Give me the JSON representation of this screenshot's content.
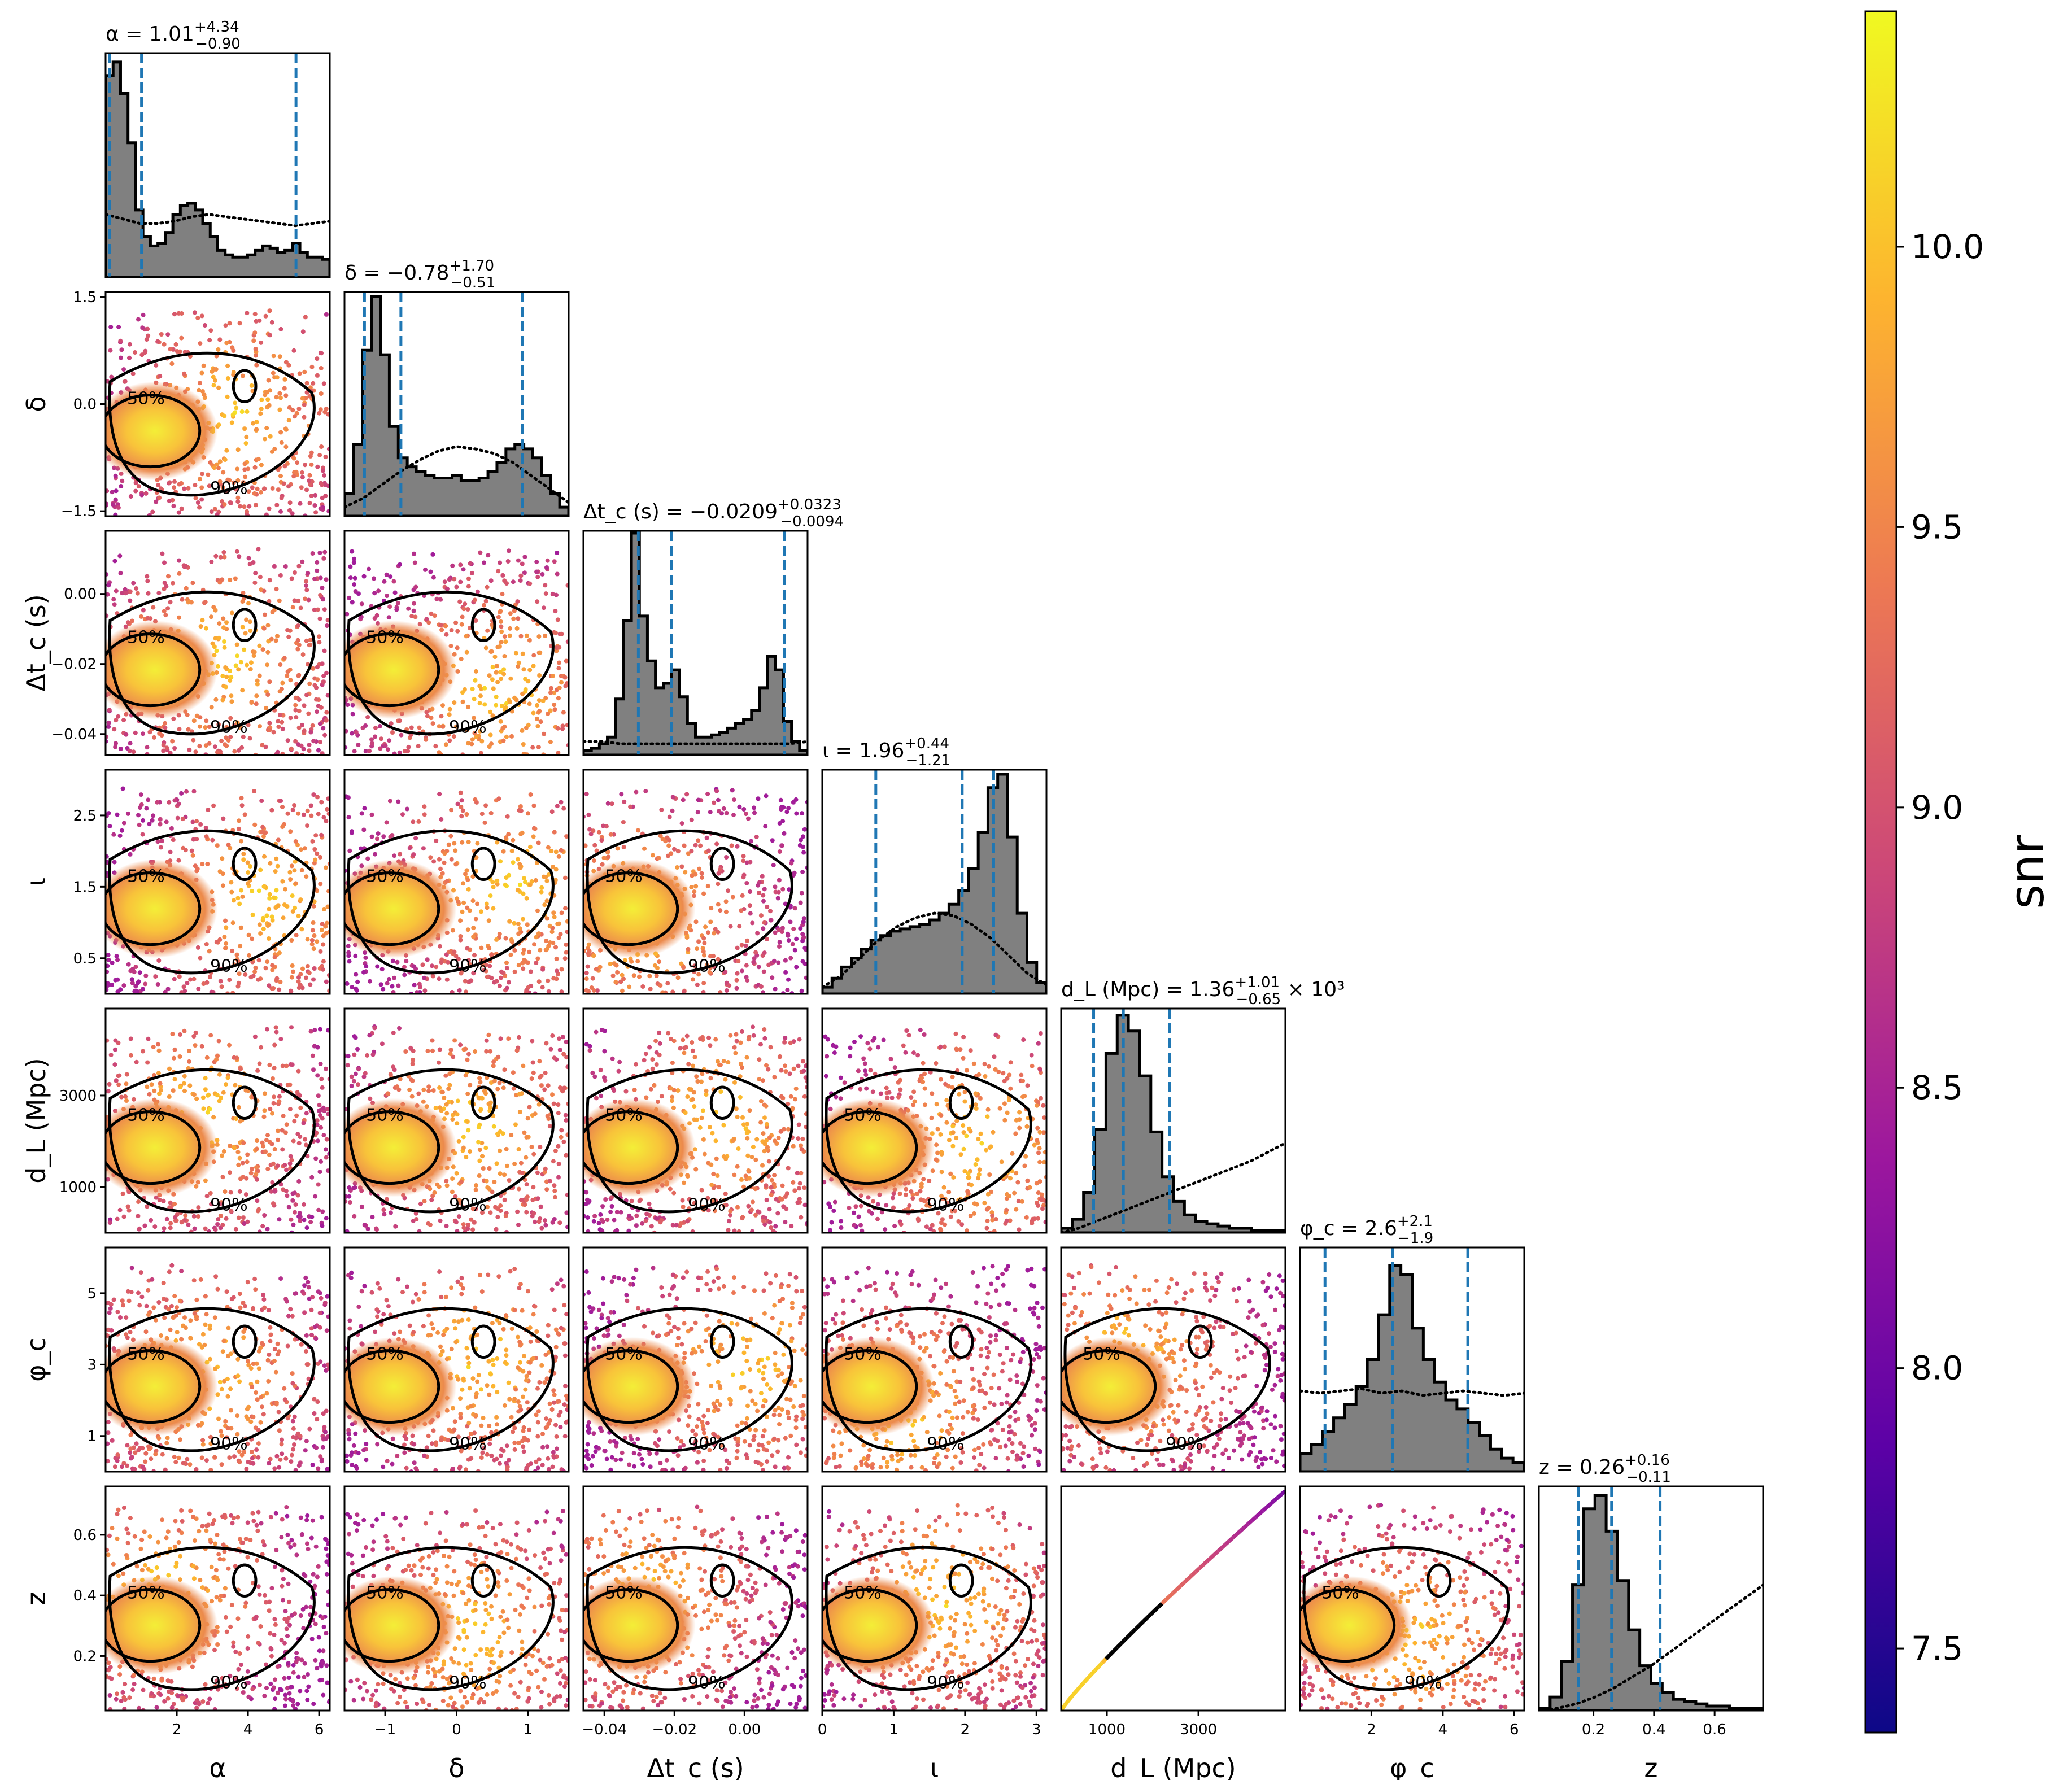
{
  "figure": {
    "type": "corner-plot",
    "parameters": [
      {
        "key": "alpha",
        "axis_label": "α",
        "title": "α = 1.01^{+4.34}_{-0.90}",
        "title_main": "α = 1.01",
        "err_up": "+4.34",
        "err_down": "−0.90",
        "range": [
          0,
          6.3
        ],
        "ticks": [
          "2",
          "4",
          "6"
        ],
        "tick_values": [
          2,
          4,
          6
        ],
        "quantiles": [
          0.11,
          1.01,
          5.35
        ]
      },
      {
        "key": "delta",
        "axis_label": "δ",
        "title_main": "δ = −0.78",
        "err_up": "+1.70",
        "err_down": "−0.51",
        "range": [
          -1.57,
          1.57
        ],
        "ticks": [
          "−1",
          "0",
          "1"
        ],
        "tick_values": [
          -1,
          0,
          1
        ],
        "yticks": [
          "1.5",
          "0.0",
          "−1.5"
        ],
        "ytick_values": [
          1.5,
          0.0,
          -1.5
        ],
        "quantiles": [
          -1.29,
          -0.78,
          0.92
        ]
      },
      {
        "key": "dtc",
        "axis_label": "Δt_c (s)",
        "title_main": "Δt_c (s) = −0.0209",
        "err_up": "+0.0323",
        "err_down": "−0.0094",
        "range": [
          -0.046,
          0.018
        ],
        "ticks": [
          "−0.04",
          "−0.02",
          "0.00"
        ],
        "tick_values": [
          -0.04,
          -0.02,
          0.0
        ],
        "yticks": [
          "0.00",
          "−0.02",
          "−0.04"
        ],
        "ytick_values": [
          0.0,
          -0.02,
          -0.04
        ],
        "quantiles": [
          -0.0303,
          -0.0209,
          0.0114
        ]
      },
      {
        "key": "iota",
        "axis_label": "ι",
        "title_main": "ι = 1.96",
        "err_up": "+0.44",
        "err_down": "−1.21",
        "range": [
          0,
          3.14
        ],
        "ticks": [
          "0",
          "1",
          "2",
          "3"
        ],
        "tick_values": [
          0,
          1,
          2,
          3
        ],
        "yticks": [
          "2.5",
          "1.5",
          "0.5"
        ],
        "ytick_values": [
          2.5,
          1.5,
          0.5
        ],
        "quantiles": [
          0.75,
          1.96,
          2.4
        ]
      },
      {
        "key": "dL",
        "axis_label": "d_L (Mpc)",
        "title_main": "d_L (Mpc) = 1.36",
        "err_up": "+1.01",
        "err_down": "−0.65",
        "title_suffix": " × 10³",
        "range": [
          0,
          4900
        ],
        "ticks": [
          "1000",
          "3000"
        ],
        "tick_values": [
          1000,
          3000
        ],
        "yticks": [
          "3000",
          "1000"
        ],
        "ytick_values": [
          3000,
          1000
        ],
        "quantiles": [
          710,
          1360,
          2370
        ]
      },
      {
        "key": "phic",
        "axis_label": "φ_c",
        "title_main": "φ_c = 2.6",
        "err_up": "+2.1",
        "err_down": "−1.9",
        "range": [
          0,
          6.28
        ],
        "ticks": [
          "2",
          "4",
          "6"
        ],
        "tick_values": [
          2,
          4,
          6
        ],
        "yticks": [
          "5",
          "3",
          "1"
        ],
        "ytick_values": [
          5,
          3,
          1
        ],
        "quantiles": [
          0.7,
          2.6,
          4.7
        ]
      },
      {
        "key": "z",
        "axis_label": "z",
        "title_main": "z = 0.26",
        "err_up": "+0.16",
        "err_down": "−0.11",
        "range": [
          0.02,
          0.76
        ],
        "ticks": [
          "0.2",
          "0.4",
          "0.6"
        ],
        "tick_values": [
          0.2,
          0.4,
          0.6
        ],
        "yticks": [
          "0.6",
          "0.4",
          "0.2"
        ],
        "ytick_values": [
          0.6,
          0.4,
          0.2
        ],
        "quantiles": [
          0.15,
          0.26,
          0.42
        ]
      }
    ],
    "contour_labels": {
      "inner": "50%",
      "outer": "90%"
    }
  },
  "colorbar": {
    "label": "snr",
    "range": [
      7.35,
      10.42
    ],
    "ticks": [
      "10.0",
      "9.5",
      "9.0",
      "8.5",
      "8.0",
      "7.5"
    ],
    "tick_values": [
      10.0,
      9.5,
      9.0,
      8.5,
      8.0,
      7.5
    ],
    "colormap": "plasma",
    "stops": [
      "#0d0887",
      "#5c01a6",
      "#9c179e",
      "#cc4778",
      "#ed7953",
      "#fdb42f",
      "#f0f921"
    ]
  },
  "chart_data": {
    "type": "corner",
    "histograms": {
      "alpha": [
        0.9,
        0.96,
        0.82,
        0.6,
        0.3,
        0.18,
        0.14,
        0.15,
        0.2,
        0.28,
        0.32,
        0.33,
        0.3,
        0.24,
        0.18,
        0.12,
        0.1,
        0.09,
        0.09,
        0.1,
        0.12,
        0.14,
        0.13,
        0.11,
        0.12,
        0.15,
        0.11,
        0.09,
        0.09,
        0.08
      ],
      "delta": [
        0.1,
        0.32,
        0.74,
        0.98,
        0.72,
        0.4,
        0.26,
        0.22,
        0.2,
        0.18,
        0.17,
        0.17,
        0.18,
        0.16,
        0.16,
        0.17,
        0.2,
        0.24,
        0.3,
        0.32,
        0.3,
        0.26,
        0.18,
        0.1,
        0.04
      ],
      "dtc": [
        0.02,
        0.03,
        0.05,
        0.08,
        0.25,
        0.6,
        0.99,
        0.62,
        0.42,
        0.3,
        0.32,
        0.38,
        0.26,
        0.14,
        0.08,
        0.08,
        0.09,
        0.1,
        0.12,
        0.14,
        0.16,
        0.2,
        0.3,
        0.44,
        0.38,
        0.15,
        0.06,
        0.02
      ],
      "iota": [
        0.03,
        0.07,
        0.12,
        0.16,
        0.2,
        0.24,
        0.26,
        0.28,
        0.29,
        0.3,
        0.31,
        0.33,
        0.36,
        0.4,
        0.46,
        0.56,
        0.72,
        0.92,
        0.98,
        0.7,
        0.36,
        0.14,
        0.05
      ],
      "dL": [
        0.02,
        0.06,
        0.18,
        0.46,
        0.8,
        0.97,
        0.9,
        0.7,
        0.45,
        0.25,
        0.14,
        0.08,
        0.05,
        0.04,
        0.03,
        0.02,
        0.02,
        0.01,
        0.01,
        0.01
      ],
      "phic": [
        0.08,
        0.12,
        0.18,
        0.24,
        0.3,
        0.38,
        0.5,
        0.7,
        0.92,
        0.88,
        0.64,
        0.5,
        0.4,
        0.32,
        0.28,
        0.22,
        0.16,
        0.1,
        0.06,
        0.04
      ],
      "z": [
        0.01,
        0.06,
        0.22,
        0.56,
        0.9,
        0.96,
        0.8,
        0.58,
        0.36,
        0.2,
        0.12,
        0.08,
        0.05,
        0.04,
        0.03,
        0.02,
        0.02,
        0.01,
        0.01,
        0.01
      ]
    },
    "priors": {
      "alpha": [
        0.28,
        0.26,
        0.24,
        0.24,
        0.25,
        0.27,
        0.28,
        0.27,
        0.26,
        0.25,
        0.24,
        0.23,
        0.24,
        0.25
      ],
      "delta": [
        0.04,
        0.08,
        0.14,
        0.2,
        0.25,
        0.29,
        0.31,
        0.3,
        0.28,
        0.24,
        0.18,
        0.12,
        0.06
      ],
      "dtc": [
        0.06,
        0.06,
        0.05,
        0.05,
        0.05,
        0.05,
        0.05,
        0.05,
        0.05,
        0.05,
        0.05,
        0.05,
        0.06
      ],
      "iota": [
        0.03,
        0.08,
        0.16,
        0.24,
        0.3,
        0.34,
        0.36,
        0.35,
        0.31,
        0.25,
        0.17,
        0.09,
        0.04
      ],
      "dL": [
        0.0,
        0.02,
        0.05,
        0.08,
        0.11,
        0.14,
        0.17,
        0.2,
        0.23,
        0.26,
        0.29,
        0.32,
        0.36,
        0.4
      ],
      "phic": [
        0.36,
        0.35,
        0.36,
        0.37,
        0.35,
        0.36,
        0.34,
        0.35,
        0.36,
        0.35,
        0.34,
        0.35
      ],
      "z": [
        0.0,
        0.01,
        0.03,
        0.06,
        0.1,
        0.15,
        0.2,
        0.26,
        0.32,
        0.38,
        0.44,
        0.5,
        0.56
      ]
    }
  }
}
